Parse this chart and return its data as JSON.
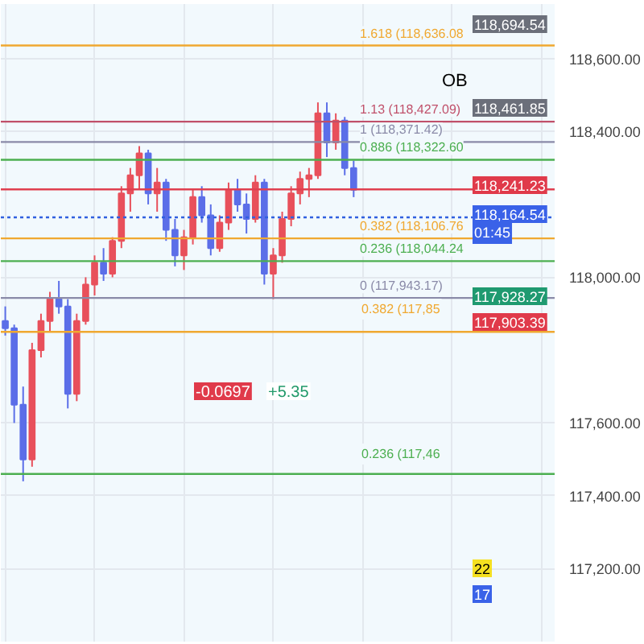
{
  "chart_data": {
    "type": "candlestick",
    "categories": [
      null,
      null,
      null,
      null,
      null,
      null,
      null,
      null,
      null,
      null,
      null,
      null,
      null,
      null,
      null,
      null,
      null,
      null,
      null,
      null,
      null,
      null,
      null,
      null,
      null,
      null,
      null,
      null,
      null,
      null,
      null,
      null,
      null,
      null,
      null,
      null,
      null,
      null,
      null,
      null,
      null,
      null,
      null,
      null,
      null,
      null,
      null,
      null,
      null,
      null,
      null,
      null,
      null,
      null,
      null,
      null,
      null,
      null,
      null,
      null,
      null,
      null
    ],
    "ohlc": [
      [
        117880,
        117920,
        117840,
        117860
      ],
      [
        117860,
        117870,
        117600,
        117650
      ],
      [
        117650,
        117700,
        117440,
        117500
      ],
      [
        117500,
        117820,
        117480,
        117800
      ],
      [
        117800,
        117900,
        117780,
        117880
      ],
      [
        117880,
        117960,
        117850,
        117940
      ],
      [
        117940,
        117990,
        117900,
        117920
      ],
      [
        117920,
        117940,
        117640,
        117680
      ],
      [
        117680,
        117900,
        117660,
        117880
      ],
      [
        117880,
        118000,
        117870,
        117980
      ],
      [
        117980,
        118060,
        117950,
        118040
      ],
      [
        118040,
        118080,
        117990,
        118010
      ],
      [
        118010,
        118110,
        118000,
        118100
      ],
      [
        118100,
        118250,
        118080,
        118230
      ],
      [
        118230,
        118300,
        118180,
        118280
      ],
      [
        118280,
        118360,
        118240,
        118340
      ],
      [
        118340,
        118350,
        118200,
        118230
      ],
      [
        118230,
        118300,
        118180,
        118260
      ],
      [
        118260,
        118270,
        118100,
        118130
      ],
      [
        118130,
        118160,
        118030,
        118060
      ],
      [
        118060,
        118130,
        118020,
        118110
      ],
      [
        118110,
        118240,
        118090,
        118220
      ],
      [
        118220,
        118250,
        118150,
        118170
      ],
      [
        118170,
        118200,
        118060,
        118080
      ],
      [
        118080,
        118170,
        118070,
        118150
      ],
      [
        118150,
        118260,
        118130,
        118240
      ],
      [
        118240,
        118270,
        118180,
        118200
      ],
      [
        118200,
        118230,
        118120,
        118160
      ],
      [
        118160,
        118280,
        118150,
        118260
      ],
      [
        118260,
        118270,
        117980,
        118010
      ],
      [
        118010,
        118080,
        117940,
        118060
      ],
      [
        118060,
        118180,
        118040,
        118160
      ],
      [
        118160,
        118250,
        118140,
        118230
      ],
      [
        118230,
        118290,
        118200,
        118270
      ],
      [
        118270,
        118300,
        118220,
        118280
      ],
      [
        118280,
        118480,
        118270,
        118450
      ],
      [
        118450,
        118480,
        118330,
        118370
      ],
      [
        118370,
        118450,
        118350,
        118430
      ],
      [
        118430,
        118440,
        118280,
        118300
      ],
      [
        118300,
        118320,
        118220,
        118240
      ],
      null,
      null,
      null,
      null,
      null,
      null,
      null,
      null,
      null,
      null,
      null,
      null,
      null,
      null,
      null,
      null,
      null,
      null,
      null,
      null,
      null,
      null
    ],
    "colors": [
      "#5b6ee8",
      "#5b6ee8",
      "#5b6ee8",
      "#e8505b",
      "#e8505b",
      "#e8505b",
      "#5b6ee8",
      "#5b6ee8",
      "#e8505b",
      "#e8505b",
      "#e8505b",
      "#5b6ee8",
      "#e8505b",
      "#e8505b",
      "#e8505b",
      "#e8505b",
      "#5b6ee8",
      "#e8505b",
      "#5b6ee8",
      "#5b6ee8",
      "#e8505b",
      "#e8505b",
      "#5b6ee8",
      "#5b6ee8",
      "#e8505b",
      "#e8505b",
      "#5b6ee8",
      "#5b6ee8",
      "#e8505b",
      "#5b6ee8",
      "#e8505b",
      "#e8505b",
      "#e8505b",
      "#e8505b",
      "#e8505b",
      "#e8505b",
      "#5b6ee8",
      "#e8505b",
      "#5b6ee8",
      "#5b6ee8",
      null,
      null,
      null,
      null,
      null,
      null,
      null,
      null,
      null,
      null,
      null,
      null,
      null,
      null,
      null,
      null,
      null,
      null,
      null,
      null,
      null,
      null
    ],
    "ylim": [
      117000,
      118750
    ],
    "yticks": [
      {
        "value": 117200,
        "label": "117,200.00"
      },
      {
        "value": 117400,
        "label": "117,400.00"
      },
      {
        "value": 117600,
        "label": "117,600.00"
      },
      {
        "value": 118000,
        "label": "118,000.00"
      },
      {
        "value": 118400,
        "label": "118,400.00"
      },
      {
        "value": 118600,
        "label": "118,600.00"
      }
    ],
    "grid": true,
    "ref_lines": [
      {
        "axis": "y",
        "value": 118636.08,
        "label": "1.618 (118,636.08",
        "color": "#f0a830"
      },
      {
        "axis": "y",
        "value": 118427.09,
        "label": "1.13 (118,427.09)",
        "color": "#c0506a"
      },
      {
        "axis": "y",
        "value": 118371.42,
        "label": "1 (118,371.42)",
        "color": "#8a8aa8"
      },
      {
        "axis": "y",
        "value": 118322.6,
        "label": "0.886 (118,322.60",
        "color": "#4caf50"
      },
      {
        "axis": "y",
        "value": 118241.23,
        "label": null,
        "color": "#e04050"
      },
      {
        "axis": "y",
        "value": 118164.54,
        "label": null,
        "color": "#3060e0",
        "line_style": "dotted"
      },
      {
        "axis": "y",
        "value": 118106.76,
        "label": "0.382 (118,106.76",
        "color": "#f0a830"
      },
      {
        "axis": "y",
        "value": 118044.24,
        "label": "0.236 (118,044.24",
        "color": "#4caf50"
      },
      {
        "axis": "y",
        "value": 117943.17,
        "label": "0 (117,943.17)",
        "color": "#8a8aa8"
      },
      {
        "axis": "y",
        "value": 117850,
        "label": null,
        "color": "#f0a830"
      },
      {
        "axis": "y",
        "value": 117460,
        "label": null,
        "color": "#4caf50"
      }
    ],
    "annotations": [
      "118,694.54",
      "OB",
      "118,461.85",
      "118,241.23",
      "118,164.54",
      "01:45",
      "117,928.27",
      "117,903.39",
      "-0.0697",
      "+5.35",
      "22",
      "17",
      "0.382 (117,85",
      "0.236 (117,46"
    ]
  }
}
